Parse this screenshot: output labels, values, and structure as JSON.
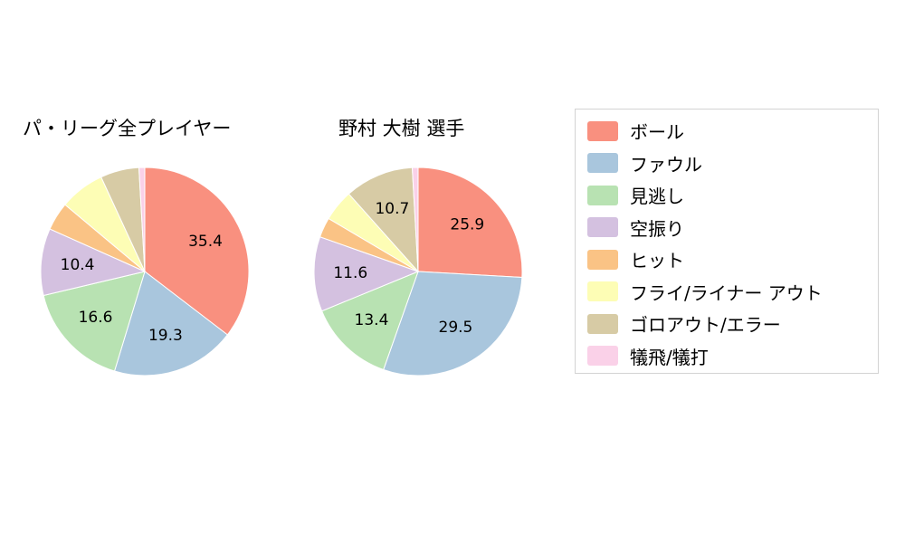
{
  "page": {
    "background_color": "#ffffff"
  },
  "chart_data": [
    {
      "type": "pie",
      "title": "パ・リーグ全プレイヤー",
      "categories": [
        "ボール",
        "ファウル",
        "見逃し",
        "空振り",
        "ヒット",
        "フライ/ライナー アウト",
        "ゴロアウト/エラー",
        "犠飛/犠打"
      ],
      "values": [
        35.4,
        19.3,
        16.6,
        10.4,
        4.4,
        7.0,
        6.0,
        0.9
      ],
      "labels_shown": [
        "35.4",
        "19.3",
        "16.6",
        "10.4",
        "",
        "",
        "",
        ""
      ],
      "start_angle_deg": 0,
      "direction": "clockwise",
      "label_position": "inside",
      "legend_position": "right"
    },
    {
      "type": "pie",
      "title": "野村 大樹 選手",
      "categories": [
        "ボール",
        "ファウル",
        "見逃し",
        "空振り",
        "ヒット",
        "フライ/ライナー アウト",
        "ゴロアウト/エラー",
        "犠飛/犠打"
      ],
      "values": [
        25.9,
        29.5,
        13.4,
        11.6,
        3.1,
        4.9,
        10.7,
        0.9
      ],
      "labels_shown": [
        "25.9",
        "29.5",
        "13.4",
        "11.6",
        "",
        "",
        "10.7",
        ""
      ],
      "start_angle_deg": 0,
      "direction": "clockwise",
      "label_position": "inside",
      "legend_position": "right"
    }
  ],
  "legend": {
    "items": [
      {
        "label": "ボール",
        "color": "#F9907F"
      },
      {
        "label": "ファウル",
        "color": "#A9C6DD"
      },
      {
        "label": "見逃し",
        "color": "#B8E2B2"
      },
      {
        "label": "空振り",
        "color": "#D4C1E0"
      },
      {
        "label": "ヒット",
        "color": "#FAC385"
      },
      {
        "label": "フライ/ライナー アウト",
        "color": "#FDFDB5"
      },
      {
        "label": "ゴロアウト/エラー",
        "color": "#D7CBA5"
      },
      {
        "label": "犠飛/犠打",
        "color": "#FAD1E8"
      }
    ]
  },
  "style": {
    "slice_stroke_color": "#ffffff",
    "slice_label_color": "#000000",
    "slice_label_font_size": 17
  }
}
